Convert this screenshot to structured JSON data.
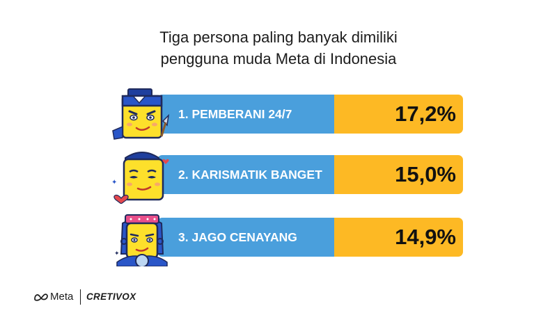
{
  "title_lines": [
    "Tiga persona paling banyak dimiliki",
    "pengguna muda Meta di Indonesia"
  ],
  "chart_data": {
    "type": "bar",
    "categories": [
      "1. PEMBERANI 24/7",
      "2. KARISMATIK BANGET",
      "3. JAGO CENAYANG"
    ],
    "values": [
      17.2,
      15.0,
      14.9
    ],
    "value_labels": [
      "17,2%",
      "15,0%",
      "14,9%"
    ],
    "unit": "%",
    "title": "Tiga persona paling banyak dimiliki pengguna muda Meta di Indonesia",
    "xlabel": "",
    "ylabel": "",
    "orientation": "horizontal",
    "grid": false
  },
  "colors": {
    "label_bar": "#4a9fdc",
    "value_bar": "#fdb924",
    "persona_face": "#fde02b",
    "outline": "#1f2a5c"
  },
  "footer": {
    "brand": "Meta",
    "partner": "CRETIVOX"
  },
  "icons": [
    "persona-pemberani-icon",
    "persona-karismatik-icon",
    "persona-cenayang-icon",
    "meta-infinity-logo"
  ]
}
